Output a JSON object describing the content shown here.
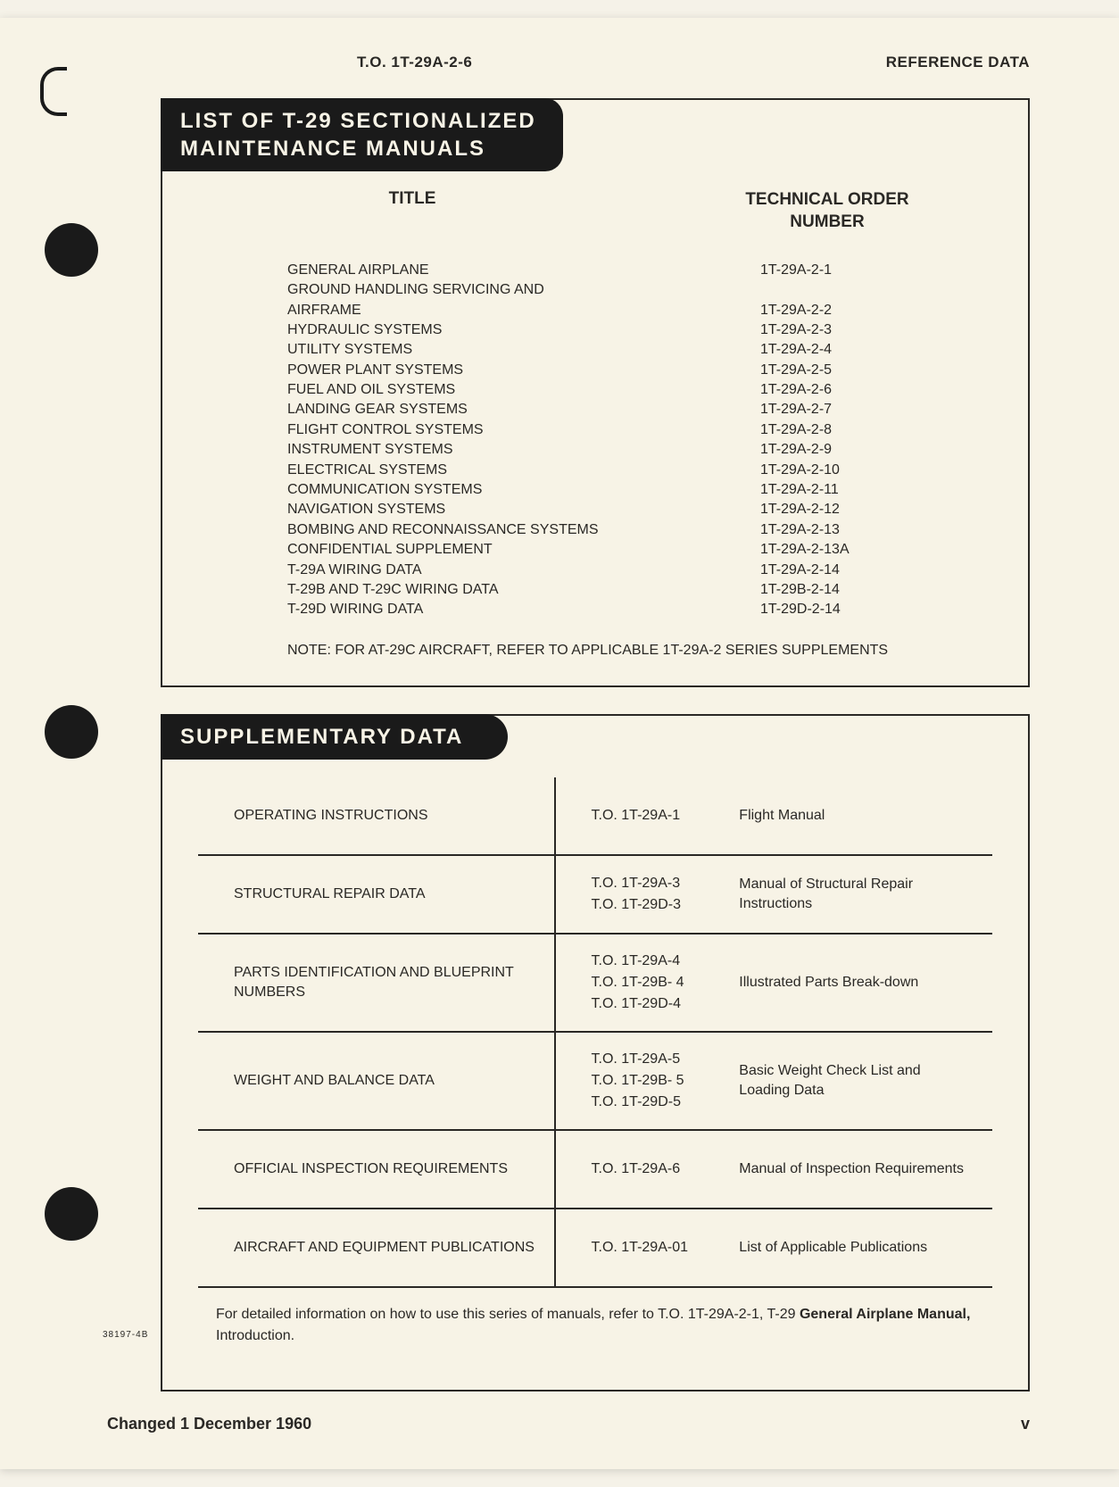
{
  "header": {
    "to_number": "T.O. 1T-29A-2-6",
    "subtitle": "REFERENCE DATA"
  },
  "section1": {
    "title_line1": "LIST OF T-29 SECTIONALIZED",
    "title_line2": "MAINTENANCE MANUALS",
    "col_title": "TITLE",
    "col_tonum": "TECHNICAL ORDER NUMBER",
    "rows": [
      {
        "t": "GENERAL AIRPLANE",
        "n": "1T-29A-2-1"
      },
      {
        "t": "GROUND HANDLING SERVICING AND",
        "n": ""
      },
      {
        "t": "AIRFRAME",
        "n": "1T-29A-2-2"
      },
      {
        "t": "HYDRAULIC SYSTEMS",
        "n": "1T-29A-2-3"
      },
      {
        "t": "UTILITY SYSTEMS",
        "n": "1T-29A-2-4"
      },
      {
        "t": "POWER PLANT SYSTEMS",
        "n": "1T-29A-2-5"
      },
      {
        "t": "FUEL AND OIL SYSTEMS",
        "n": "1T-29A-2-6"
      },
      {
        "t": "LANDING GEAR SYSTEMS",
        "n": "1T-29A-2-7"
      },
      {
        "t": "FLIGHT CONTROL SYSTEMS",
        "n": "1T-29A-2-8"
      },
      {
        "t": "INSTRUMENT SYSTEMS",
        "n": "1T-29A-2-9"
      },
      {
        "t": "ELECTRICAL SYSTEMS",
        "n": "1T-29A-2-10"
      },
      {
        "t": "COMMUNICATION SYSTEMS",
        "n": "1T-29A-2-11"
      },
      {
        "t": "NAVIGATION SYSTEMS",
        "n": "1T-29A-2-12"
      },
      {
        "t": "BOMBING AND RECONNAISSANCE SYSTEMS",
        "n": "1T-29A-2-13"
      },
      {
        "t": "CONFIDENTIAL SUPPLEMENT",
        "n": "1T-29A-2-13A"
      },
      {
        "t": "T-29A WIRING DATA",
        "n": "1T-29A-2-14"
      },
      {
        "t": "T-29B AND T-29C WIRING DATA",
        "n": "1T-29B-2-14"
      },
      {
        "t": "T-29D WIRING DATA",
        "n": "1T-29D-2-14"
      }
    ],
    "note": "NOTE: FOR AT-29C AIRCRAFT, REFER TO APPLICABLE 1T-29A-2 SERIES SUPPLEMENTS"
  },
  "section2": {
    "title": "SUPPLEMENTARY DATA",
    "rows": [
      {
        "left": "OPERATING INSTRUCTIONS",
        "mid": [
          "T.O. 1T-29A-1"
        ],
        "right": "Flight Manual"
      },
      {
        "left": "STRUCTURAL REPAIR DATA",
        "mid": [
          "T.O. 1T-29A-3",
          "T.O. 1T-29D-3"
        ],
        "right": "Manual of Structural Repair Instructions"
      },
      {
        "left": "PARTS IDENTIFICATION AND BLUEPRINT NUMBERS",
        "mid": [
          "T.O. 1T-29A-4",
          "T.O. 1T-29B- 4",
          "T.O. 1T-29D-4"
        ],
        "right": "Illustrated Parts Break-down"
      },
      {
        "left": "WEIGHT AND BALANCE DATA",
        "mid": [
          "T.O. 1T-29A-5",
          "T.O. 1T-29B- 5",
          "T.O. 1T-29D-5"
        ],
        "right": "Basic Weight Check List and Loading Data"
      },
      {
        "left": "OFFICIAL INSPECTION REQUIREMENTS",
        "mid": [
          "T.O. 1T-29A-6"
        ],
        "right": "Manual of Inspection Requirements"
      },
      {
        "left": "AIRCRAFT AND EQUIPMENT PUBLICATIONS",
        "mid": [
          "T.O. 1T-29A-01"
        ],
        "right": "List of Applicable Publications"
      }
    ],
    "footnote_pre": "For detailed information on how to use this series of manuals, refer to T.O. 1T-29A-2-1, T-29 ",
    "footnote_bold": "General Airplane Manual,",
    "footnote_post": " Introduction."
  },
  "small_code": "38197-4B",
  "footer": {
    "changed": "Changed 1 December 1960",
    "pagenum": "v"
  },
  "colors": {
    "paper": "#f7f3e6",
    "ink": "#2a2825",
    "header_bg": "#1a1a1a"
  }
}
